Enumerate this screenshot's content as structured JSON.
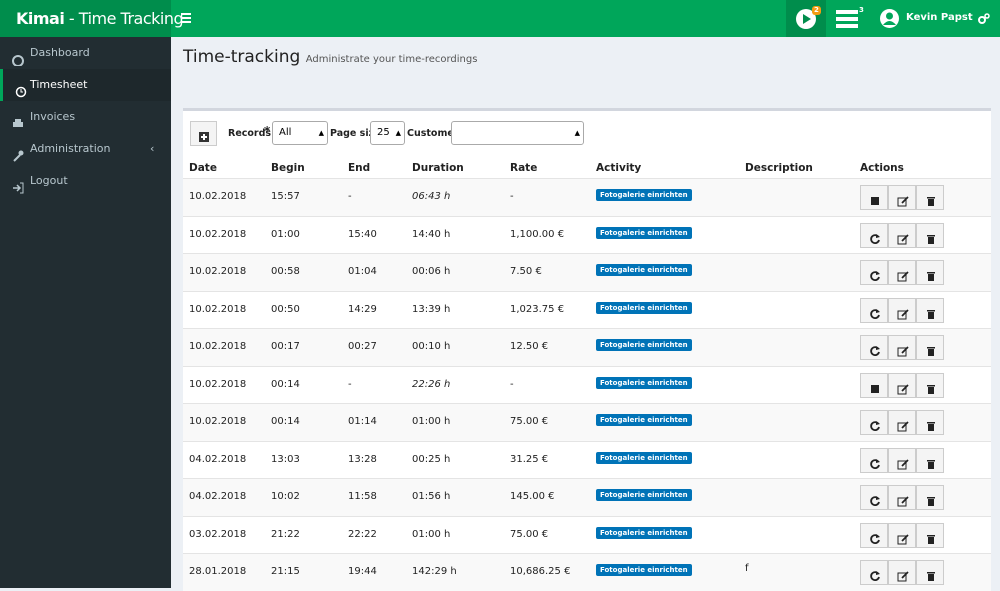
{
  "header": {
    "logo_bold": "Kimai",
    "logo_rest": " - Time Tracking",
    "badge_play": "2",
    "badge_list": "3",
    "user": "Kevin Papst"
  },
  "sidebar": {
    "items": [
      "Dashboard",
      "Timesheet",
      "Invoices",
      "Administration",
      "Logout"
    ],
    "active": 1
  },
  "page": {
    "title": "Time-tracking",
    "subtitle": "Administrate your time-recordings"
  },
  "toolbar": {
    "records_label": "Records",
    "required_mark": "*",
    "records_value": "All",
    "page_size_label": "Page size",
    "page_size_value": "25",
    "customer_label": "Customer"
  },
  "table": {
    "columns": [
      "Date",
      "Begin",
      "End",
      "Duration",
      "Rate",
      "Activity",
      "Description",
      "Actions"
    ],
    "rows": [
      {
        "date": "10.02.2018",
        "begin": "15:57",
        "end": "-",
        "duration": "06:43 h",
        "rate": "-",
        "activity": "Fotogalerie einrichten"
      },
      {
        "date": "10.02.2018",
        "begin": "01:00",
        "end": "15:40",
        "duration": "14:40 h",
        "rate": "1,100.00 €",
        "activity": "Fotogalerie einrichten"
      },
      {
        "date": "10.02.2018",
        "begin": "00:58",
        "end": "01:04",
        "duration": "00:06 h",
        "rate": "7.50 €",
        "activity": "Fotogalerie einrichten"
      },
      {
        "date": "10.02.2018",
        "begin": "00:50",
        "end": "14:29",
        "duration": "13:39 h",
        "rate": "1,023.75 €",
        "activity": "Fotogalerie einrichten"
      },
      {
        "date": "10.02.2018",
        "begin": "00:17",
        "end": "00:27",
        "duration": "00:10 h",
        "rate": "12.50 €",
        "activity": "Fotogalerie einrichten"
      },
      {
        "date": "10.02.2018",
        "begin": "00:14",
        "end": "-",
        "duration": "22:26 h",
        "rate": "-",
        "activity": "Fotogalerie einrichten"
      },
      {
        "date": "10.02.2018",
        "begin": "00:14",
        "end": "01:14",
        "duration": "01:00 h",
        "rate": "75.00 €",
        "activity": "Fotogalerie einrichten"
      },
      {
        "date": "04.02.2018",
        "begin": "13:03",
        "end": "13:28",
        "duration": "00:25 h",
        "rate": "31.25 €",
        "activity": "Fotogalerie einrichten"
      },
      {
        "date": "04.02.2018",
        "begin": "10:02",
        "end": "11:58",
        "duration": "01:56 h",
        "rate": "145.00 €",
        "activity": "Fotogalerie einrichten"
      },
      {
        "date": "03.02.2018",
        "begin": "21:22",
        "end": "22:22",
        "duration": "01:00 h",
        "rate": "75.00 €",
        "activity": "Fotogalerie einrichten"
      },
      {
        "date": "28.01.2018",
        "begin": "21:15",
        "end": "19:44",
        "duration": "142:29 h",
        "rate": "10,686.25 €",
        "activity": "Fotogalerie einrichten",
        "description": "f"
      }
    ]
  }
}
